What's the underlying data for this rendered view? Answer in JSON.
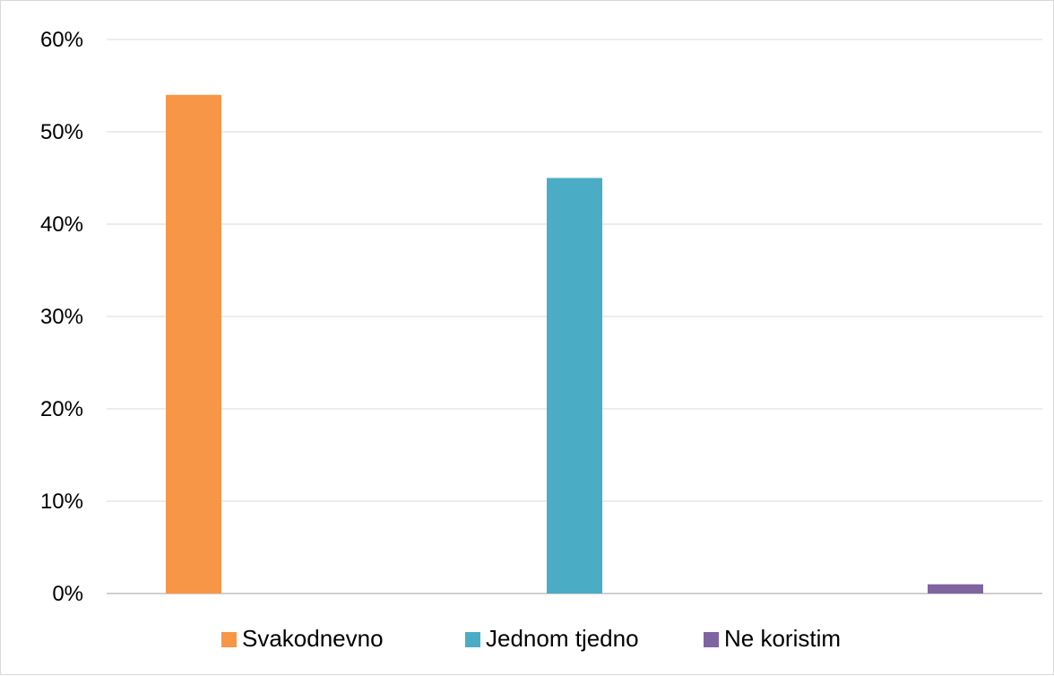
{
  "chart_data": {
    "type": "bar",
    "title": "",
    "xlabel": "",
    "ylabel": "",
    "categories": [
      ""
    ],
    "series": [
      {
        "name": "Svakodnevno",
        "values": [
          54
        ],
        "color": "#F79646"
      },
      {
        "name": "Jednom tjedno",
        "values": [
          45
        ],
        "color": "#4BACC6"
      },
      {
        "name": "Ne koristim",
        "values": [
          1
        ],
        "color": "#8064A2"
      }
    ],
    "ylim": [
      0,
      60
    ],
    "yticks": [
      0,
      10,
      20,
      30,
      40,
      50,
      60
    ],
    "ytick_labels": [
      "0%",
      "10%",
      "20%",
      "30%",
      "40%",
      "50%",
      "60%"
    ],
    "grid": true,
    "legend_position": "bottom"
  }
}
